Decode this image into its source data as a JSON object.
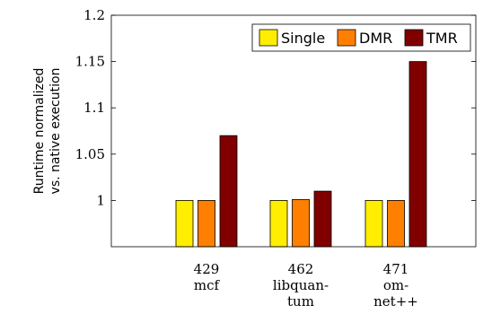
{
  "chart_data": {
    "type": "bar",
    "ylabel_lines": [
      "Runtime normalized",
      "vs. native execution"
    ],
    "categories": [
      {
        "lines": [
          "429",
          "mcf"
        ]
      },
      {
        "lines": [
          "462",
          "libquan-",
          "tum"
        ]
      },
      {
        "lines": [
          "471",
          "om-",
          "net++"
        ]
      }
    ],
    "series": [
      {
        "name": "Single",
        "color": "#ffee00",
        "values": [
          1.0,
          1.0,
          1.0
        ]
      },
      {
        "name": "DMR",
        "color": "#ff8000",
        "values": [
          1.0,
          1.001,
          1.0
        ]
      },
      {
        "name": "TMR",
        "color": "#800000",
        "values": [
          1.07,
          1.01,
          1.15
        ]
      }
    ],
    "ylim": [
      0.95,
      1.2
    ],
    "yticks": [
      1,
      1.05,
      1.1,
      1.15,
      1.2
    ],
    "ytick_labels": [
      "1",
      "1.05",
      "1.1",
      "1.15",
      "1.2"
    ],
    "legend_position": "top-right",
    "grid": false
  }
}
